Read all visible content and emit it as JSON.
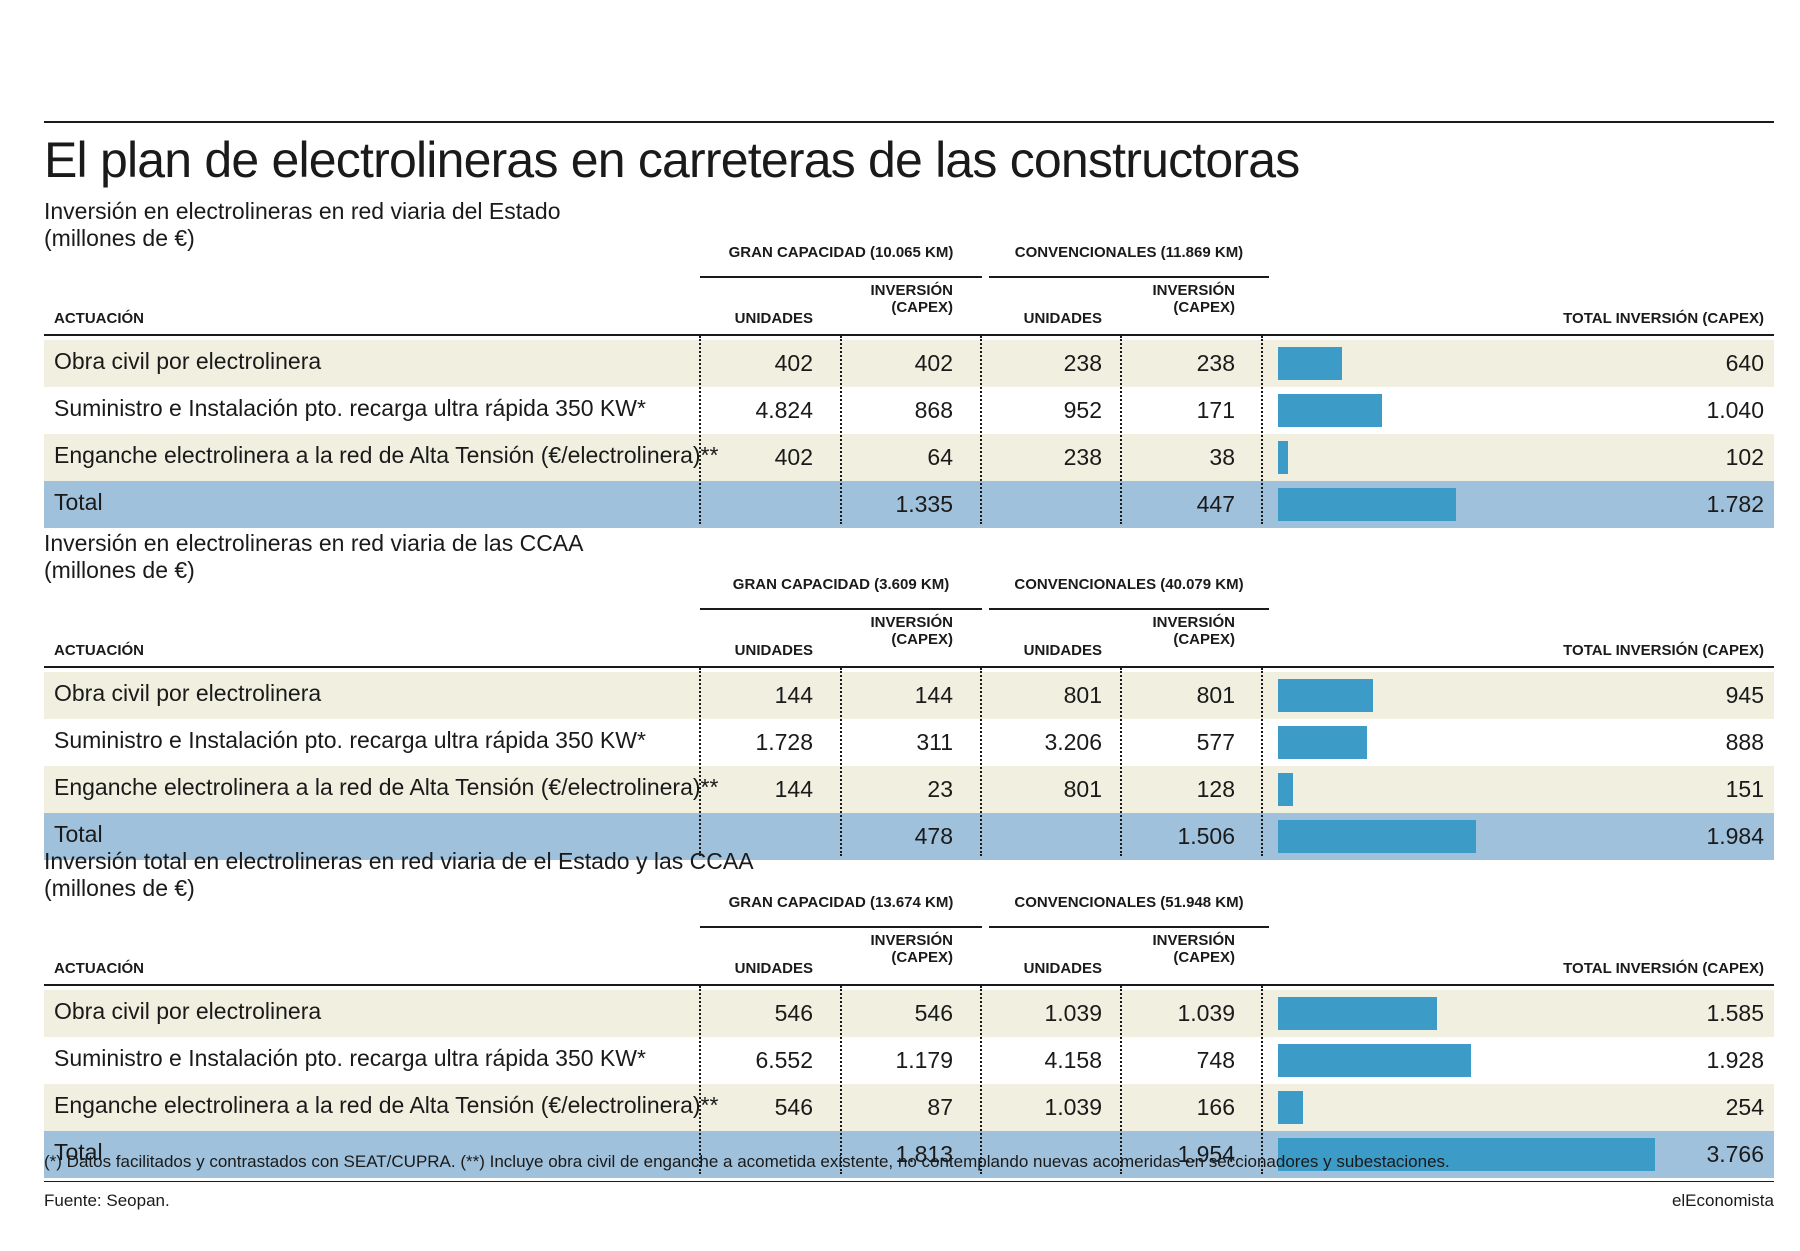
{
  "title": "El plan de electrolineras en carreteras de las constructoras",
  "headers": {
    "actuacion": "ACTUACIÓN",
    "unidades": "UNIDADES",
    "inversion": "INVERSIÓN",
    "capex": "(CAPEX)",
    "total": "TOTAL INVERSIÓN (CAPEX)"
  },
  "footnote": "(*) Datos facilitados y contrastados con SEAT/CUPRA. (**) Incluye obra civil de enganche a acometida existente, no contemplando nuevas acomeridas en seccionadores y subestaciones.",
  "source": "Fuente: Seopan.",
  "brand": "elEconomista",
  "colors": {
    "bar": "#3d9bc8",
    "row_alt": "#f0efe0",
    "row_total": "#9fc1dc"
  },
  "chart_data": [
    {
      "type": "table",
      "subtitle_line1": "Inversión en electrolineras en red viaria del Estado",
      "subtitle_line2": "(millones de €)",
      "group_gc": "GRAN CAPACIDAD (10.065 KM)",
      "group_cv": "CONVENCIONALES  (11.869 KM)",
      "rows": [
        {
          "label": "Obra civil por electrolinera",
          "u1": "402",
          "i1": "402",
          "u2": "238",
          "i2": "238",
          "total": "640",
          "value": 640
        },
        {
          "label": "Suministro e Instalación pto. recarga ultra rápida 350 KW*",
          "u1": "4.824",
          "i1": "868",
          "u2": "952",
          "i2": "171",
          "total": "1.040",
          "value": 1040
        },
        {
          "label": "Enganche electrolinera a la red de Alta Tensión (€/electrolinera)**",
          "u1": "402",
          "i1": "64",
          "u2": "238",
          "i2": "38",
          "total": "102",
          "value": 102
        },
        {
          "label": "Total",
          "u1": "",
          "i1": "1.335",
          "u2": "",
          "i2": "447",
          "total": "1.782",
          "value": 1782
        }
      ]
    },
    {
      "type": "table",
      "subtitle_line1": "Inversión en electrolineras en red viaria de las CCAA",
      "subtitle_line2": "(millones de €)",
      "group_gc": "GRAN CAPACIDAD (3.609 KM)",
      "group_cv": "CONVENCIONALES  (40.079 KM)",
      "rows": [
        {
          "label": "Obra civil por electrolinera",
          "u1": "144",
          "i1": "144",
          "u2": "801",
          "i2": "801",
          "total": "945",
          "value": 945
        },
        {
          "label": "Suministro e Instalación pto. recarga ultra rápida 350 KW*",
          "u1": "1.728",
          "i1": "311",
          "u2": "3.206",
          "i2": "577",
          "total": "888",
          "value": 888
        },
        {
          "label": "Enganche electrolinera a la red de Alta Tensión (€/electrolinera)**",
          "u1": "144",
          "i1": "23",
          "u2": "801",
          "i2": "128",
          "total": "151",
          "value": 151
        },
        {
          "label": "Total",
          "u1": "",
          "i1": "478",
          "u2": "",
          "i2": "1.506",
          "total": "1.984",
          "value": 1984
        }
      ]
    },
    {
      "type": "table",
      "subtitle_line1": "Inversión total en electrolineras en red viaria de el Estado y las CCAA",
      "subtitle_line2": "(millones de €)",
      "group_gc": "GRAN CAPACIDAD (13.674 KM)",
      "group_cv": "CONVENCIONALES  (51.948 KM)",
      "rows": [
        {
          "label": "Obra civil por electrolinera",
          "u1": "546",
          "i1": "546",
          "u2": "1.039",
          "i2": "1.039",
          "total": "1.585",
          "value": 1585
        },
        {
          "label": "Suministro e Instalación pto. recarga ultra rápida 350 KW*",
          "u1": "6.552",
          "i1": "1.179",
          "u2": "4.158",
          "i2": "748",
          "total": "1.928",
          "value": 1928
        },
        {
          "label": "Enganche electrolinera a la red de Alta Tensión (€/electrolinera)**",
          "u1": "546",
          "i1": "87",
          "u2": "1.039",
          "i2": "166",
          "total": "254",
          "value": 254
        },
        {
          "label": "Total",
          "u1": "",
          "i1": "1.813",
          "u2": "",
          "i2": "1.954",
          "total": "3.766",
          "value": 3766
        }
      ]
    }
  ]
}
